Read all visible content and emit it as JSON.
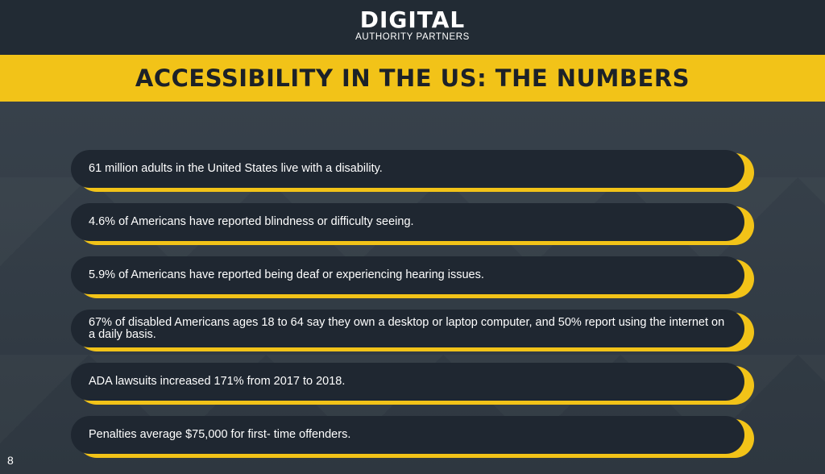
{
  "logo": {
    "main": "DIGITAL",
    "sub": "AUTHORITY PARTNERS"
  },
  "banner": {
    "title": "ACCESSIBILITY IN THE US: THE NUMBERS"
  },
  "facts": [
    "61 million adults in the United States live with a disability.",
    "4.6% of Americans have reported blindness or difficulty seeing.",
    "5.9% of Americans have reported being deaf or experiencing hearing issues.",
    "67% of disabled Americans ages 18 to 64 say they own a desktop or laptop computer, and 50% report using the internet on a daily basis.",
    "ADA lawsuits increased 171% from 2017 to 2018.",
    "Penalties average $75,000 for first- time offenders."
  ],
  "page_number": "8",
  "colors": {
    "accent": "#f2c318",
    "pill": "#1f2731",
    "background": "#2f3943",
    "header": "#222b34"
  }
}
